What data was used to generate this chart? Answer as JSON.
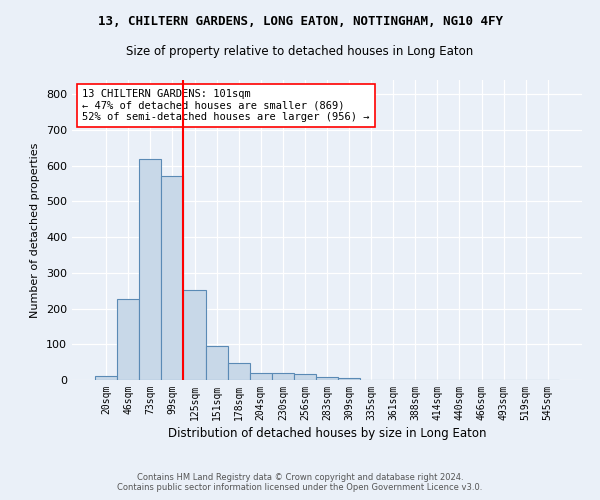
{
  "title": "13, CHILTERN GARDENS, LONG EATON, NOTTINGHAM, NG10 4FY",
  "subtitle": "Size of property relative to detached houses in Long Eaton",
  "xlabel": "Distribution of detached houses by size in Long Eaton",
  "ylabel": "Number of detached properties",
  "bar_labels": [
    "20sqm",
    "46sqm",
    "73sqm",
    "99sqm",
    "125sqm",
    "151sqm",
    "178sqm",
    "204sqm",
    "230sqm",
    "256sqm",
    "283sqm",
    "309sqm",
    "335sqm",
    "361sqm",
    "388sqm",
    "414sqm",
    "440sqm",
    "466sqm",
    "493sqm",
    "519sqm",
    "545sqm"
  ],
  "bar_values": [
    10,
    227,
    619,
    571,
    253,
    96,
    47,
    21,
    21,
    18,
    8,
    7,
    0,
    0,
    0,
    0,
    0,
    0,
    0,
    0,
    0
  ],
  "bar_color": "#c8d8e8",
  "bar_edge_color": "#5a8ab5",
  "background_color": "#eaf0f8",
  "grid_color": "#ffffff",
  "red_line_x": 3.5,
  "property_label": "13 CHILTERN GARDENS: 101sqm",
  "annotation_line1": "← 47% of detached houses are smaller (869)",
  "annotation_line2": "52% of semi-detached houses are larger (956) →",
  "footer_line1": "Contains HM Land Registry data © Crown copyright and database right 2024.",
  "footer_line2": "Contains public sector information licensed under the Open Government Licence v3.0.",
  "ylim": [
    0,
    840
  ],
  "yticks": [
    0,
    100,
    200,
    300,
    400,
    500,
    600,
    700,
    800
  ]
}
